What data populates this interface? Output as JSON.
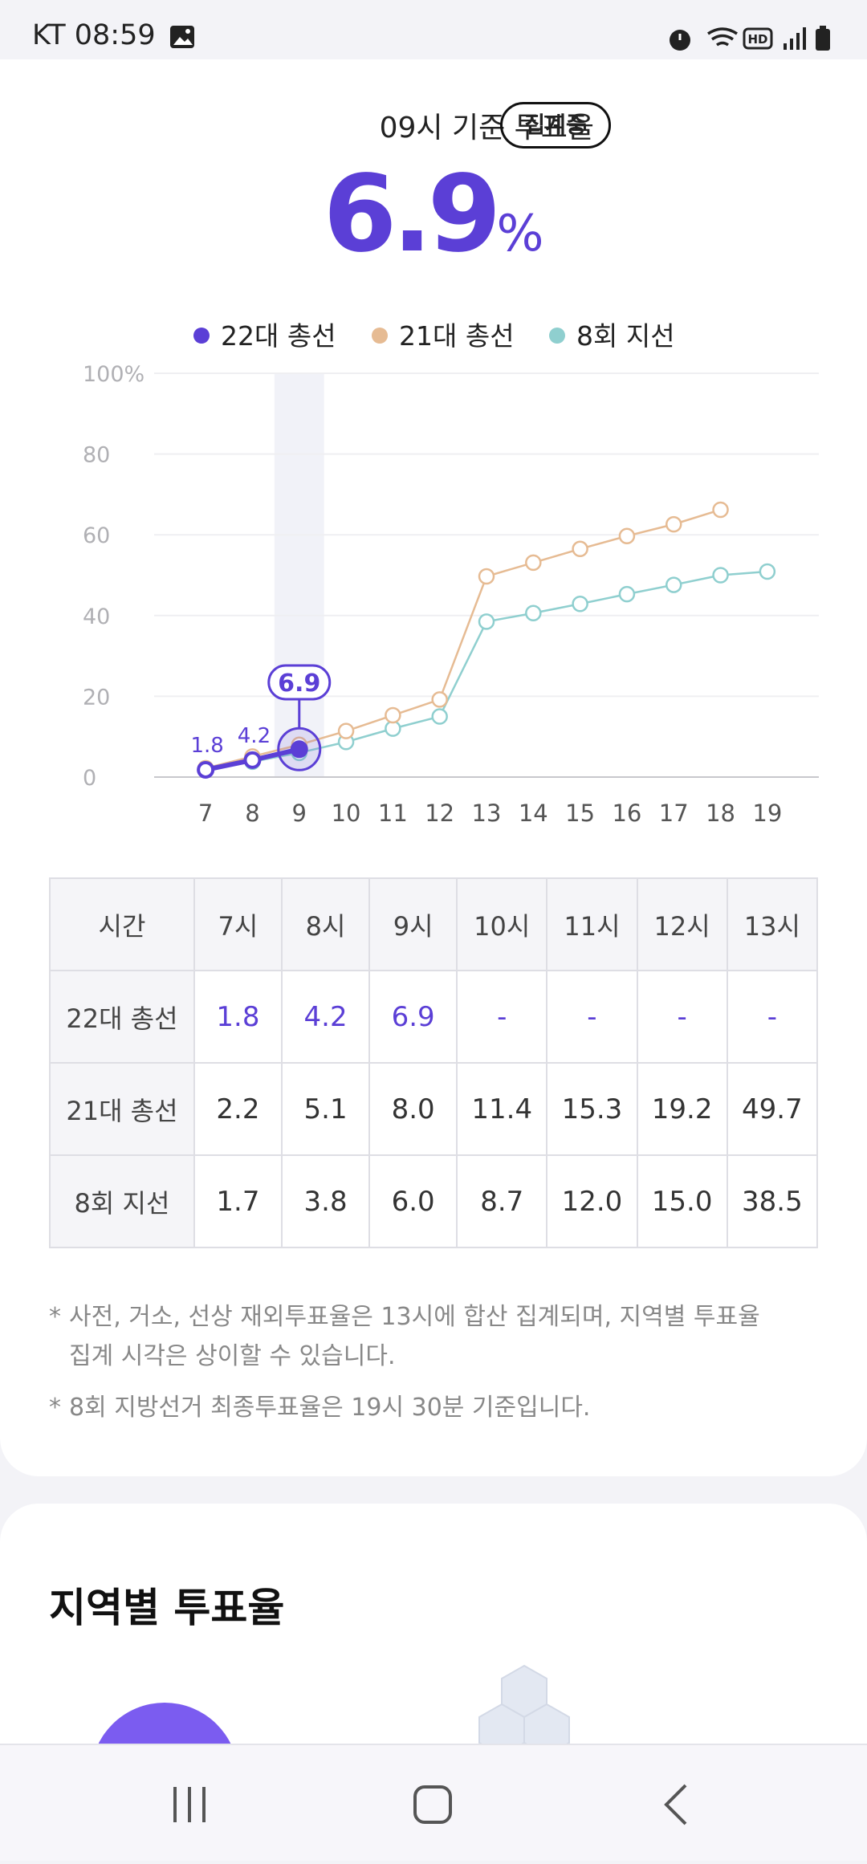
{
  "status_bar": {
    "carrier_time": "KT 08:59"
  },
  "header": {
    "title": "09시 기준 투표율",
    "badge": "집계중",
    "unit": "%"
  },
  "chart_data": {
    "type": "line",
    "x": [
      7,
      8,
      9,
      10,
      11,
      12,
      13,
      14,
      15,
      16,
      17,
      18,
      19
    ],
    "xticks": [
      7,
      8,
      9,
      10,
      11,
      12,
      13,
      14,
      15,
      16,
      17,
      18,
      19
    ],
    "xlim": [
      5.9,
      20.1
    ],
    "ylim": [
      0,
      100
    ],
    "yticks": [
      0,
      20,
      40,
      60,
      80,
      {
        "value": 100,
        "label": "100%"
      }
    ],
    "grid": true,
    "series": [
      {
        "name": "22대 총선",
        "color": "#5b3fd6",
        "values": [
          1.8,
          4.2,
          6.9,
          null,
          null,
          null,
          null,
          null,
          null,
          null,
          null,
          null,
          null
        ]
      },
      {
        "name": "21대 총선",
        "color": "#e6bb93",
        "values": [
          2.2,
          5.1,
          8.0,
          11.4,
          15.3,
          19.2,
          49.7,
          53.1,
          56.5,
          59.7,
          62.6,
          66.2,
          null
        ]
      },
      {
        "name": "8회 지선",
        "color": "#8fcfcf",
        "values": [
          1.7,
          3.8,
          6.0,
          8.7,
          12.0,
          15.0,
          38.5,
          40.6,
          42.9,
          45.3,
          47.6,
          50.0,
          50.9
        ]
      }
    ]
  },
  "table": {
    "header": [
      "시간",
      "7시",
      "8시",
      "9시",
      "10시",
      "11시",
      "12시",
      "13시"
    ],
    "rows": [
      [
        "22대 총선",
        "1.8",
        "4.2",
        "6.9",
        "-",
        "-",
        "-",
        "-"
      ],
      [
        "21대 총선",
        "2.2",
        "5.1",
        "8.0",
        "11.4",
        "15.3",
        "19.2",
        "49.7"
      ],
      [
        "8회 지선",
        "1.7",
        "3.8",
        "6.0",
        "8.7",
        "12.0",
        "15.0",
        "38.5"
      ]
    ]
  },
  "notes": [
    "사전, 거소, 선상 재외투표율은 13시에 합산 집계되며, 지역별 투표율 집계 시각은 상이할 수 있습니다.",
    "8회 지방선거 최종투표율은 19시 30분 기준입니다."
  ],
  "section": {
    "title": "지역별 투표율"
  }
}
